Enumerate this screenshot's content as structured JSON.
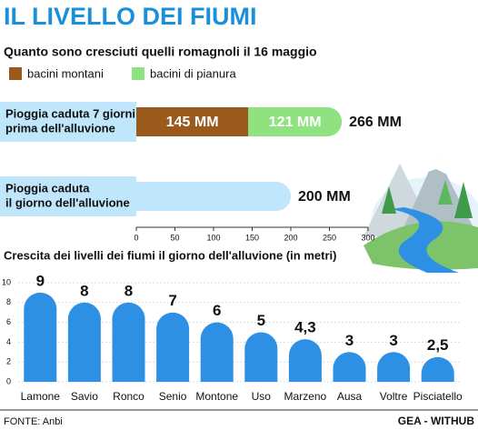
{
  "chart_data": [
    {
      "type": "stacked-hbar",
      "title": "IL LIVELLO DEI FIUMI",
      "subtitle": "Quanto sono cresciuti quelli romagnoli il 16 maggio",
      "categories": [
        [
          "Pioggia caduta 7 giorni",
          "prima dell'alluvione"
        ],
        [
          "Pioggia caduta",
          "il giorno dell'alluvione"
        ]
      ],
      "series": [
        {
          "name": "bacini montani",
          "color": "#9a5a1c",
          "values": [
            145,
            null
          ],
          "value_labels": [
            "145 MM",
            null
          ]
        },
        {
          "name": "bacini di pianura",
          "color": "#8fe27f",
          "values": [
            121,
            null
          ],
          "value_labels": [
            "121 MM",
            null
          ]
        }
      ],
      "totals": {
        "color": "#bfe6fb",
        "values": [
          266,
          200
        ],
        "value_labels": [
          "266 MM",
          "200 MM"
        ]
      },
      "xlim": [
        0,
        300
      ],
      "xticks": [
        0,
        50,
        100,
        150,
        200,
        250,
        300
      ]
    },
    {
      "type": "bar",
      "title": "Crescita dei livelli dei fiumi il giorno dell'alluvione (in metri)",
      "categories": [
        "Lamone",
        "Savio",
        "Ronco",
        "Senio",
        "Montone",
        "Uso",
        "Marzeno",
        "Ausa",
        "Voltre",
        "Pisciatello"
      ],
      "values": [
        9,
        8,
        8,
        7,
        6,
        5,
        4.3,
        3,
        3,
        2.5
      ],
      "value_labels": [
        "9",
        "8",
        "8",
        "7",
        "6",
        "5",
        "4,3",
        "3",
        "3",
        "2,5"
      ],
      "color": "#2e90e4",
      "ylim": [
        0,
        10
      ],
      "yticks": [
        0,
        2,
        4,
        6,
        8,
        10
      ],
      "grid": true
    }
  ],
  "source": "FONTE: Anbi",
  "credit": "GEA - WITHUB"
}
